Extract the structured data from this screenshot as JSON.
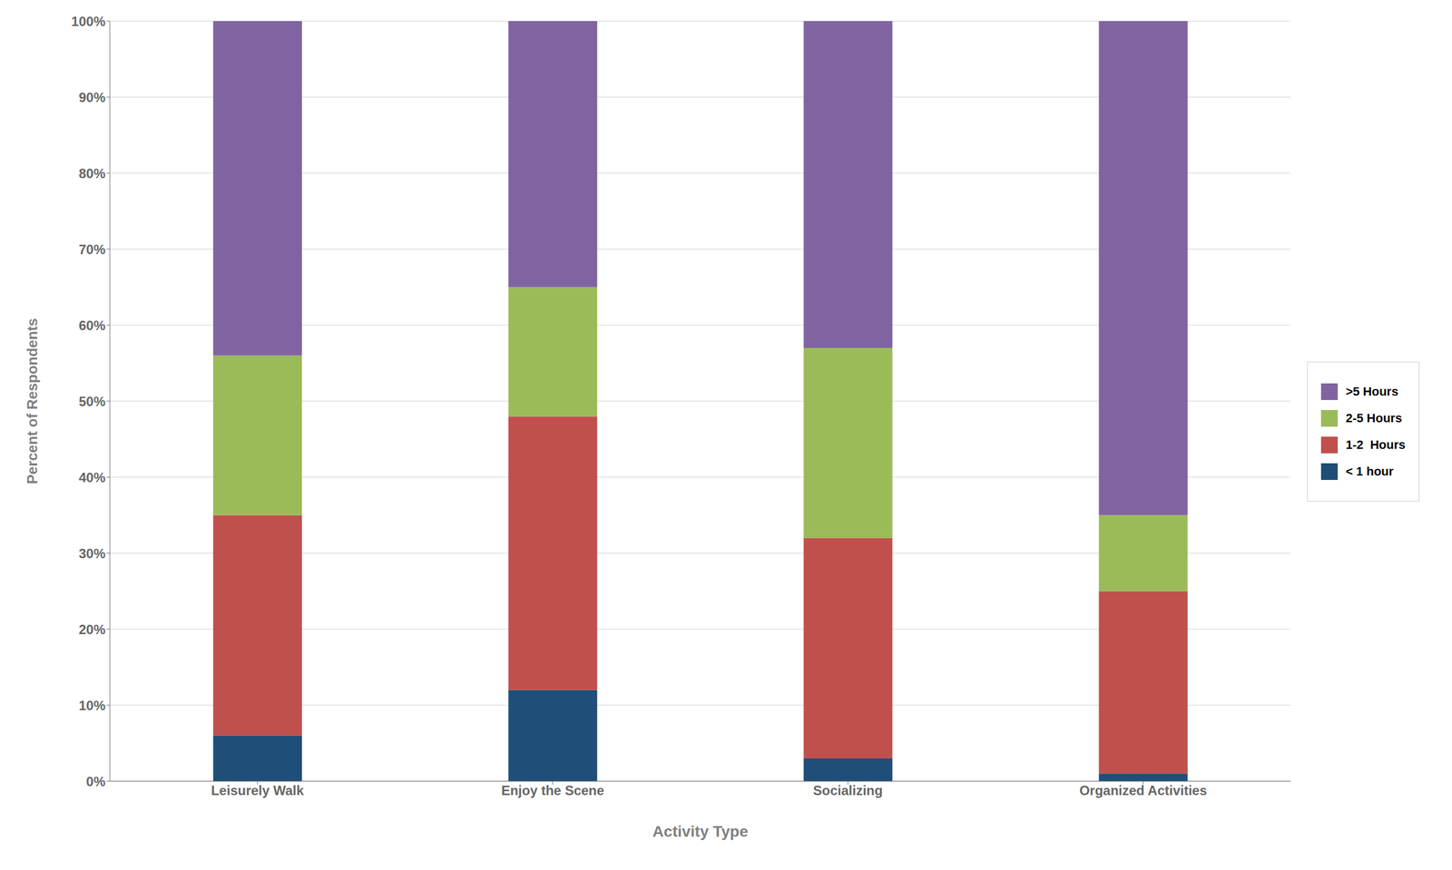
{
  "chart_data": {
    "type": "bar",
    "stacked": true,
    "categories": [
      "Leisurely Walk",
      "Enjoy the Scene",
      "Socializing",
      "Organized Activities"
    ],
    "series": [
      {
        "name": "< 1 hour",
        "color": "#1F4E79",
        "values": [
          6,
          12,
          3,
          1
        ]
      },
      {
        "name": "1-2  Hours",
        "color": "#C0504D",
        "values": [
          29,
          36,
          29,
          24
        ]
      },
      {
        "name": "2-5 Hours",
        "color": "#9BBB59",
        "values": [
          21,
          17,
          25,
          10
        ]
      },
      {
        "name": ">5 Hours",
        "color": "#8064A2",
        "values": [
          44,
          35,
          43,
          65
        ]
      }
    ],
    "xlabel": "Activity Type",
    "ylabel": "Percent of Respondents",
    "ylim": [
      0,
      100
    ],
    "yticks": [
      {
        "value": 0,
        "label": "0%"
      },
      {
        "value": 10,
        "label": "10%"
      },
      {
        "value": 20,
        "label": "20%"
      },
      {
        "value": 30,
        "label": "30%"
      },
      {
        "value": 40,
        "label": "40%"
      },
      {
        "value": 50,
        "label": "50%"
      },
      {
        "value": 60,
        "label": "60%"
      },
      {
        "value": 70,
        "label": "70%"
      },
      {
        "value": 80,
        "label": "80%"
      },
      {
        "value": 90,
        "label": "90%"
      },
      {
        "value": 100,
        "label": "100%"
      }
    ],
    "grid": true,
    "legend": "right"
  }
}
